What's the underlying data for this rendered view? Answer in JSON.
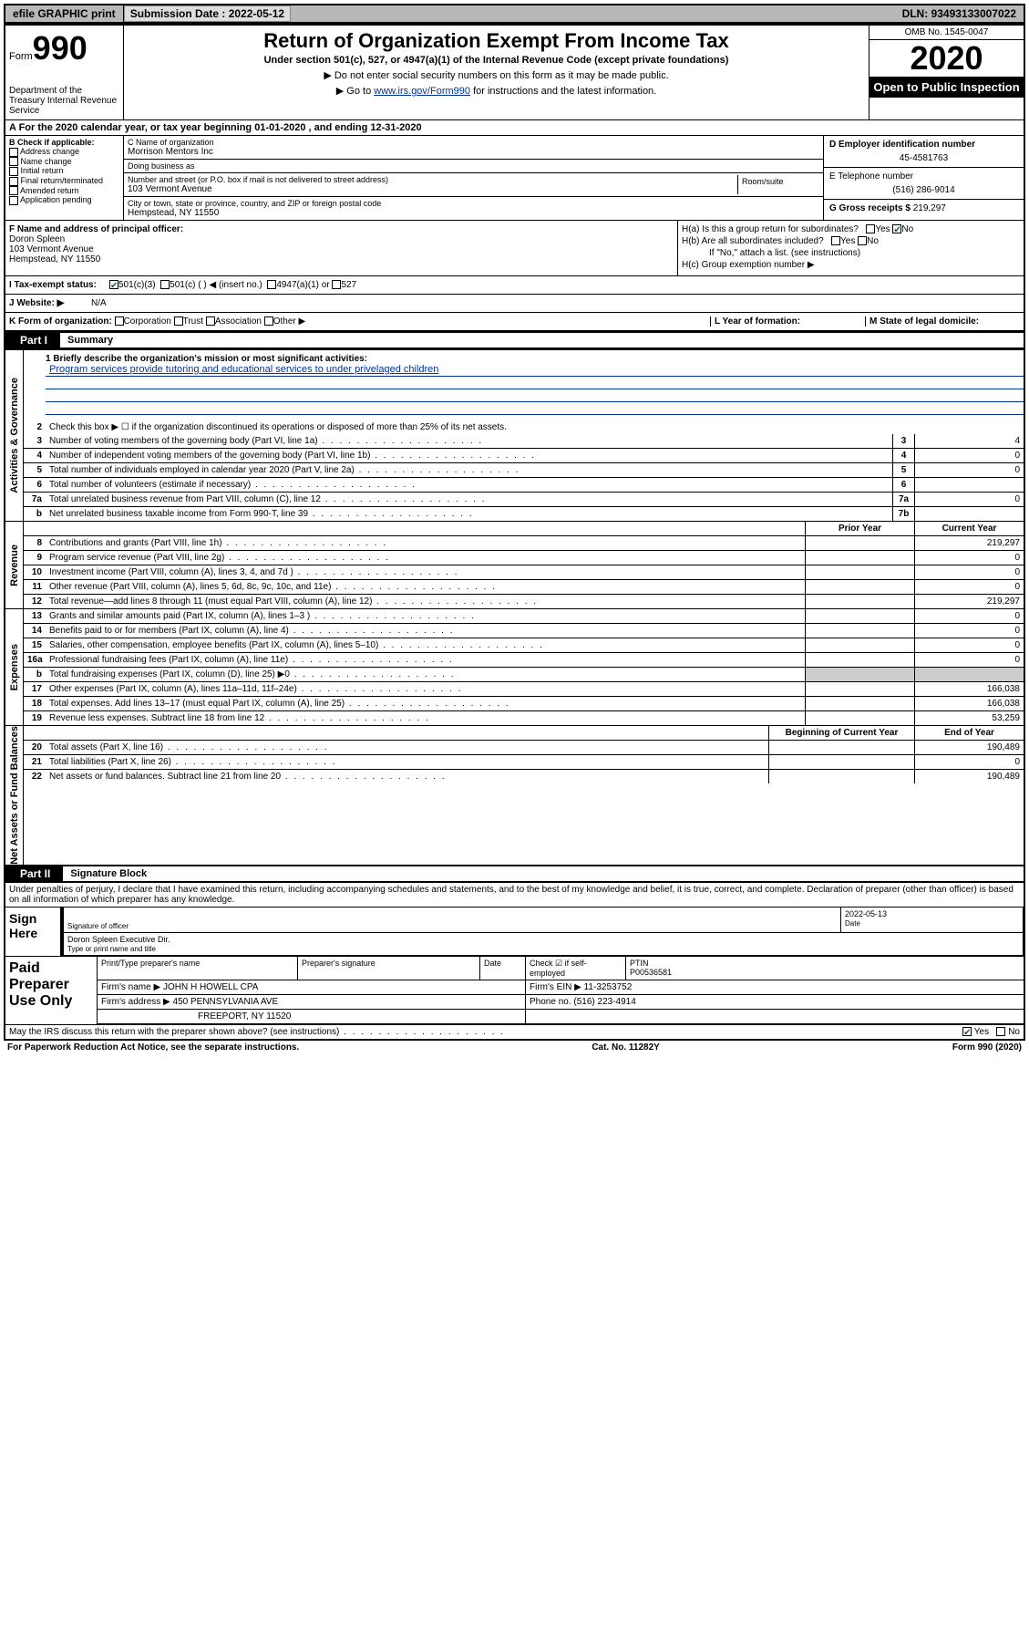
{
  "topbar": {
    "efile": "efile GRAPHIC print",
    "submission_label": "Submission Date : 2022-05-12",
    "dln_label": "DLN: 93493133007022"
  },
  "header": {
    "form_prefix": "Form",
    "form_no": "990",
    "dept": "Department of the Treasury Internal Revenue Service",
    "title": "Return of Organization Exempt From Income Tax",
    "subtitle": "Under section 501(c), 527, or 4947(a)(1) of the Internal Revenue Code (except private foundations)",
    "note1": "▶ Do not enter social security numbers on this form as it may be made public.",
    "note2_a": "▶ Go to ",
    "note2_link": "www.irs.gov/Form990",
    "note2_b": " for instructions and the latest information.",
    "omb": "OMB No. 1545-0047",
    "year": "2020",
    "open": "Open to Public Inspection"
  },
  "lineA": "A  For the 2020 calendar year, or tax year beginning 01-01-2020   , and ending 12-31-2020",
  "secB": {
    "label": "B Check if applicable:",
    "opts": [
      "Address change",
      "Name change",
      "Initial return",
      "Final return/terminated",
      "Amended return",
      "Application pending"
    ]
  },
  "secC": {
    "name_label": "C Name of organization",
    "name": "Morrison Mentors Inc",
    "dba_label": "Doing business as",
    "street_label": "Number and street (or P.O. box if mail is not delivered to street address)",
    "room_label": "Room/suite",
    "street": "103 Vermont Avenue",
    "city_label": "City or town, state or province, country, and ZIP or foreign postal code",
    "city": "Hempstead, NY  11550"
  },
  "secD": {
    "label": "D Employer identification number",
    "value": "45-4581763"
  },
  "secE": {
    "label": "E Telephone number",
    "value": "(516) 286-9014"
  },
  "secG": {
    "label": "G Gross receipts $",
    "value": "219,297"
  },
  "secF": {
    "label": "F Name and address of principal officer:",
    "name": "Doron Spleen",
    "street": "103 Vermont Avenue",
    "city": "Hempstead, NY  11550"
  },
  "secH": {
    "ha": "H(a)  Is this a group return for subordinates?",
    "hb": "H(b)  Are all subordinates included?",
    "hnote": "If \"No,\" attach a list. (see instructions)",
    "hc": "H(c)  Group exemption number ▶"
  },
  "secI": {
    "label": "I  Tax-exempt status:",
    "s501c3": "501(c)(3)",
    "s501c": "501(c) (  ) ◀ (insert no.)",
    "s4947": "4947(a)(1) or",
    "s527": "527"
  },
  "secJ": {
    "label": "J  Website: ▶",
    "value": "N/A"
  },
  "secK": {
    "label": "K Form of organization:",
    "corp": "Corporation",
    "trust": "Trust",
    "assoc": "Association",
    "other": "Other ▶",
    "L": "L Year of formation:",
    "M": "M State of legal domicile:"
  },
  "part1": {
    "tab": "Part I",
    "title": "Summary",
    "q1_label": "1  Briefly describe the organization's mission or most significant activities:",
    "q1_text": "Program services provide tutoring and educational services to under privelaged children",
    "q2": "Check this box ▶ ☐  if the organization discontinued its operations or disposed of more than 25% of its net assets.",
    "rows_a": [
      {
        "n": "3",
        "t": "Number of voting members of the governing body (Part VI, line 1a)",
        "b": "3",
        "v": "4"
      },
      {
        "n": "4",
        "t": "Number of independent voting members of the governing body (Part VI, line 1b)",
        "b": "4",
        "v": "0"
      },
      {
        "n": "5",
        "t": "Total number of individuals employed in calendar year 2020 (Part V, line 2a)",
        "b": "5",
        "v": "0"
      },
      {
        "n": "6",
        "t": "Total number of volunteers (estimate if necessary)",
        "b": "6",
        "v": ""
      },
      {
        "n": "7a",
        "t": "Total unrelated business revenue from Part VIII, column (C), line 12",
        "b": "7a",
        "v": "0"
      },
      {
        "n": "b",
        "t": "Net unrelated business taxable income from Form 990-T, line 39",
        "b": "7b",
        "v": ""
      }
    ],
    "col_hdr": {
      "n": "",
      "t": "",
      "py": "Prior Year",
      "cy": "Current Year"
    },
    "rows_rev": [
      {
        "n": "8",
        "t": "Contributions and grants (Part VIII, line 1h)",
        "py": "",
        "cy": "219,297"
      },
      {
        "n": "9",
        "t": "Program service revenue (Part VIII, line 2g)",
        "py": "",
        "cy": "0"
      },
      {
        "n": "10",
        "t": "Investment income (Part VIII, column (A), lines 3, 4, and 7d )",
        "py": "",
        "cy": "0"
      },
      {
        "n": "11",
        "t": "Other revenue (Part VIII, column (A), lines 5, 6d, 8c, 9c, 10c, and 11e)",
        "py": "",
        "cy": "0"
      },
      {
        "n": "12",
        "t": "Total revenue—add lines 8 through 11 (must equal Part VIII, column (A), line 12)",
        "py": "",
        "cy": "219,297"
      }
    ],
    "rows_exp": [
      {
        "n": "13",
        "t": "Grants and similar amounts paid (Part IX, column (A), lines 1–3 )",
        "py": "",
        "cy": "0"
      },
      {
        "n": "14",
        "t": "Benefits paid to or for members (Part IX, column (A), line 4)",
        "py": "",
        "cy": "0"
      },
      {
        "n": "15",
        "t": "Salaries, other compensation, employee benefits (Part IX, column (A), lines 5–10)",
        "py": "",
        "cy": "0"
      },
      {
        "n": "16a",
        "t": "Professional fundraising fees (Part IX, column (A), line 11e)",
        "py": "",
        "cy": "0"
      },
      {
        "n": "b",
        "t": "Total fundraising expenses (Part IX, column (D), line 25) ▶0",
        "py": "shade",
        "cy": "shade"
      },
      {
        "n": "17",
        "t": "Other expenses (Part IX, column (A), lines 11a–11d, 11f–24e)",
        "py": "",
        "cy": "166,038"
      },
      {
        "n": "18",
        "t": "Total expenses. Add lines 13–17 (must equal Part IX, column (A), line 25)",
        "py": "",
        "cy": "166,038"
      },
      {
        "n": "19",
        "t": "Revenue less expenses. Subtract line 18 from line 12",
        "py": "",
        "cy": "53,259"
      }
    ],
    "col_hdr2": {
      "py": "Beginning of Current Year",
      "cy": "End of Year"
    },
    "rows_na": [
      {
        "n": "20",
        "t": "Total assets (Part X, line 16)",
        "py": "",
        "cy": "190,489"
      },
      {
        "n": "21",
        "t": "Total liabilities (Part X, line 26)",
        "py": "",
        "cy": "0"
      },
      {
        "n": "22",
        "t": "Net assets or fund balances. Subtract line 21 from line 20",
        "py": "",
        "cy": "190,489"
      }
    ],
    "side_gov": "Activities & Governance",
    "side_rev": "Revenue",
    "side_exp": "Expenses",
    "side_na": "Net Assets or Fund Balances"
  },
  "part2": {
    "tab": "Part II",
    "title": "Signature Block",
    "penalty": "Under penalties of perjury, I declare that I have examined this return, including accompanying schedules and statements, and to the best of my knowledge and belief, it is true, correct, and complete. Declaration of preparer (other than officer) is based on all information of which preparer has any knowledge.",
    "sign_here": "Sign Here",
    "sig_officer": "Signature of officer",
    "sig_date_label": "Date",
    "sig_date": "2022-05-13",
    "sig_name": "Doron Spleen  Executive Dir.",
    "sig_name_label": "Type or print name and title",
    "paid": "Paid Preparer Use Only",
    "p_name_label": "Print/Type preparer's name",
    "p_sig_label": "Preparer's signature",
    "p_date_label": "Date",
    "p_check": "Check ☑ if self-employed",
    "p_ptin_label": "PTIN",
    "p_ptin": "P00536581",
    "firm_label": "Firm's name    ▶",
    "firm": "JOHN H HOWELL CPA",
    "firm_ein_label": "Firm's EIN ▶",
    "firm_ein": "11-3253752",
    "firm_addr_label": "Firm's address ▶",
    "firm_addr1": "450 PENNSYLVANIA AVE",
    "firm_addr2": "FREEPORT, NY  11520",
    "phone_label": "Phone no.",
    "phone": "(516) 223-4914",
    "discuss": "May the IRS discuss this return with the preparer shown above? (see instructions)",
    "yes": "Yes",
    "no": "No"
  },
  "footer": {
    "pra": "For Paperwork Reduction Act Notice, see the separate instructions.",
    "cat": "Cat. No. 11282Y",
    "form": "Form 990 (2020)"
  }
}
